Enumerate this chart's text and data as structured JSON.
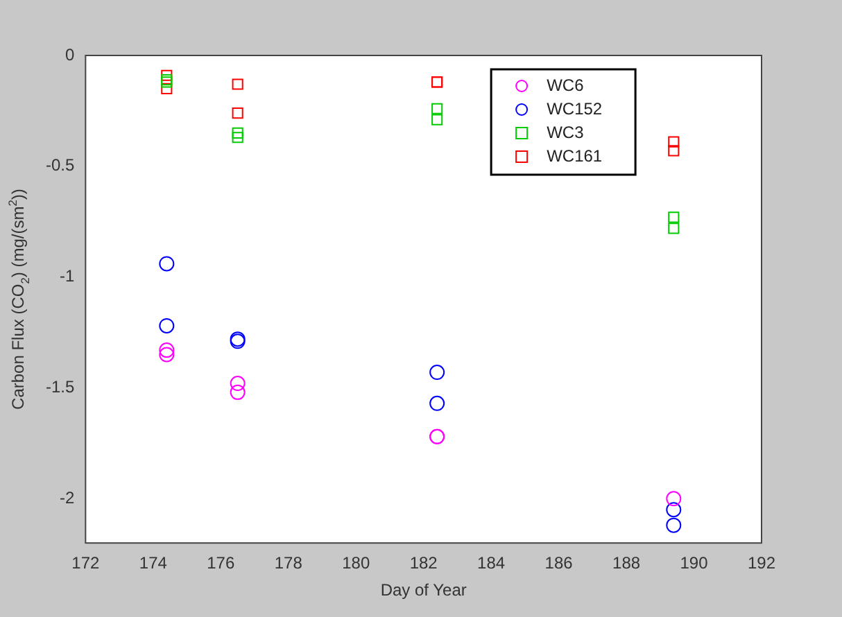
{
  "chart_data": {
    "type": "scatter",
    "xlabel": "Day of Year",
    "ylabel": "Carbon Flux (CO$_{2}$) (mg/(sm$^{2}$))",
    "xlim": [
      172,
      192
    ],
    "xticks": [
      172,
      174,
      176,
      178,
      180,
      182,
      184,
      186,
      188,
      190,
      192
    ],
    "ylim": [
      -2.2,
      0
    ],
    "yticks": [
      0,
      -0.5,
      -1,
      -1.5,
      -2
    ],
    "grid": false,
    "legend": "top right",
    "series": [
      {
        "name": "WC6",
        "color": "#ff00ff",
        "marker": "circle",
        "x": [
          174.4,
          174.4,
          176.5,
          176.5,
          182.4,
          182.4,
          189.4
        ],
        "values": [
          -1.33,
          -1.35,
          -1.48,
          -1.52,
          -1.72,
          -1.72,
          -2.0
        ]
      },
      {
        "name": "WC152",
        "color": "#0000ff",
        "marker": "circle",
        "x": [
          174.4,
          174.4,
          176.5,
          176.5,
          182.4,
          182.4,
          189.4,
          189.4
        ],
        "values": [
          -0.94,
          -1.22,
          -1.28,
          -1.29,
          -1.43,
          -1.57,
          -2.05,
          -2.12
        ]
      },
      {
        "name": "WC3",
        "color": "#00cc00",
        "marker": "square",
        "x": [
          174.4,
          174.4,
          176.5,
          176.5,
          182.4,
          182.4,
          189.4,
          189.4
        ],
        "values": [
          -0.11,
          -0.12,
          -0.35,
          -0.37,
          -0.24,
          -0.29,
          -0.73,
          -0.78
        ]
      },
      {
        "name": "WC161",
        "color": "#ff0000",
        "marker": "square",
        "x": [
          174.4,
          174.4,
          176.5,
          176.5,
          182.4,
          182.4,
          189.4,
          189.4
        ],
        "values": [
          -0.09,
          -0.15,
          -0.13,
          -0.26,
          -0.12,
          -0.12,
          -0.39,
          -0.43
        ]
      }
    ]
  }
}
